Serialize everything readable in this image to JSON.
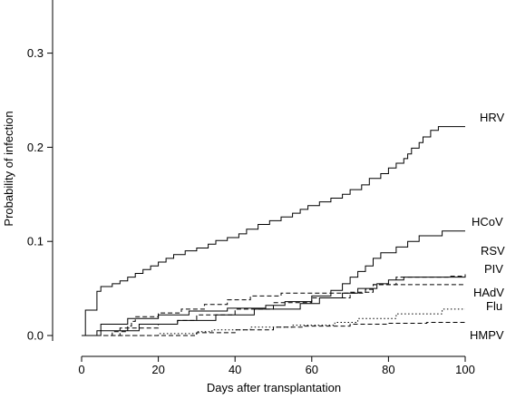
{
  "chart_data": {
    "type": "line",
    "title": "",
    "xlabel": "Days after transplantation",
    "ylabel": "Probability of infection",
    "xlim": [
      0,
      100
    ],
    "ylim": [
      0,
      0.35
    ],
    "x_ticks": [
      0,
      20,
      40,
      60,
      80,
      100
    ],
    "y_ticks": [
      0.0,
      0.1,
      0.2,
      0.3
    ],
    "x_tick_labels": [
      "0",
      "20",
      "40",
      "60",
      "80",
      "100"
    ],
    "y_tick_labels": [
      "0.0",
      "0.1",
      "0.2",
      "0.3"
    ],
    "grid": false,
    "step": true,
    "series": [
      {
        "name": "HRV",
        "style": "solid",
        "points": [
          [
            0,
            0
          ],
          [
            1,
            0.027
          ],
          [
            3,
            0.027
          ],
          [
            4,
            0.047
          ],
          [
            5,
            0.052
          ],
          [
            8,
            0.055
          ],
          [
            10,
            0.058
          ],
          [
            12,
            0.062
          ],
          [
            14,
            0.066
          ],
          [
            16,
            0.07
          ],
          [
            18,
            0.074
          ],
          [
            20,
            0.078
          ],
          [
            22,
            0.082
          ],
          [
            24,
            0.086
          ],
          [
            27,
            0.09
          ],
          [
            30,
            0.093
          ],
          [
            33,
            0.097
          ],
          [
            35,
            0.101
          ],
          [
            38,
            0.104
          ],
          [
            41,
            0.108
          ],
          [
            43,
            0.113
          ],
          [
            46,
            0.118
          ],
          [
            49,
            0.122
          ],
          [
            52,
            0.126
          ],
          [
            55,
            0.13
          ],
          [
            57,
            0.134
          ],
          [
            59,
            0.138
          ],
          [
            62,
            0.142
          ],
          [
            65,
            0.146
          ],
          [
            68,
            0.15
          ],
          [
            70,
            0.155
          ],
          [
            73,
            0.16
          ],
          [
            75,
            0.167
          ],
          [
            78,
            0.172
          ],
          [
            80,
            0.178
          ],
          [
            82,
            0.183
          ],
          [
            84,
            0.188
          ],
          [
            85,
            0.193
          ],
          [
            86,
            0.199
          ],
          [
            88,
            0.205
          ],
          [
            89,
            0.211
          ],
          [
            91,
            0.218
          ],
          [
            93,
            0.222
          ],
          [
            100,
            0.222
          ]
        ]
      },
      {
        "name": "HCoV",
        "style": "solid",
        "points": [
          [
            0,
            0
          ],
          [
            5,
            0.012
          ],
          [
            12,
            0.018
          ],
          [
            20,
            0.022
          ],
          [
            28,
            0.026
          ],
          [
            38,
            0.029
          ],
          [
            48,
            0.032
          ],
          [
            53,
            0.036
          ],
          [
            60,
            0.042
          ],
          [
            65,
            0.048
          ],
          [
            68,
            0.055
          ],
          [
            70,
            0.062
          ],
          [
            72,
            0.068
          ],
          [
            74,
            0.074
          ],
          [
            76,
            0.082
          ],
          [
            78,
            0.088
          ],
          [
            82,
            0.094
          ],
          [
            85,
            0.1
          ],
          [
            88,
            0.106
          ],
          [
            94,
            0.111
          ],
          [
            100,
            0.111
          ]
        ]
      },
      {
        "name": "RSV",
        "style": "solid",
        "points": [
          [
            0,
            0
          ],
          [
            4,
            0.005
          ],
          [
            15,
            0.012
          ],
          [
            25,
            0.016
          ],
          [
            35,
            0.022
          ],
          [
            45,
            0.028
          ],
          [
            57,
            0.034
          ],
          [
            62,
            0.04
          ],
          [
            68,
            0.045
          ],
          [
            72,
            0.05
          ],
          [
            77,
            0.055
          ],
          [
            80,
            0.059
          ],
          [
            84,
            0.062
          ],
          [
            100,
            0.064
          ]
        ]
      },
      {
        "name": "PIV",
        "style": "dashed",
        "points": [
          [
            0,
            0
          ],
          [
            8,
            0.004
          ],
          [
            12,
            0.01
          ],
          [
            13,
            0.015
          ],
          [
            14,
            0.02
          ],
          [
            20,
            0.024
          ],
          [
            26,
            0.028
          ],
          [
            32,
            0.033
          ],
          [
            38,
            0.038
          ],
          [
            44,
            0.042
          ],
          [
            52,
            0.045
          ],
          [
            60,
            0.045
          ],
          [
            70,
            0.046
          ],
          [
            76,
            0.054
          ],
          [
            82,
            0.062
          ],
          [
            96,
            0.063
          ],
          [
            100,
            0.065
          ]
        ]
      },
      {
        "name": "HAdV",
        "style": "dashed",
        "points": [
          [
            0,
            0
          ],
          [
            10,
            0.008
          ],
          [
            20,
            0.012
          ],
          [
            25,
            0.016
          ],
          [
            30,
            0.022
          ],
          [
            40,
            0.028
          ],
          [
            50,
            0.035
          ],
          [
            60,
            0.04
          ],
          [
            70,
            0.045
          ],
          [
            74,
            0.049
          ],
          [
            76,
            0.054
          ],
          [
            100,
            0.054
          ]
        ]
      },
      {
        "name": "Flu",
        "style": "dotted",
        "points": [
          [
            0,
            0
          ],
          [
            20,
            0.002
          ],
          [
            30,
            0.004
          ],
          [
            34,
            0.006
          ],
          [
            44,
            0.009
          ],
          [
            55,
            0.011
          ],
          [
            66,
            0.014
          ],
          [
            72,
            0.018
          ],
          [
            82,
            0.023
          ],
          [
            94,
            0.028
          ],
          [
            100,
            0.028
          ]
        ]
      },
      {
        "name": "HMPV",
        "style": "dashed",
        "points": [
          [
            0,
            0
          ],
          [
            30,
            0.003
          ],
          [
            40,
            0.006
          ],
          [
            50,
            0.009
          ],
          [
            58,
            0.01
          ],
          [
            70,
            0.012
          ],
          [
            80,
            0.013
          ],
          [
            90,
            0.014
          ],
          [
            100,
            0.014
          ]
        ]
      }
    ]
  }
}
